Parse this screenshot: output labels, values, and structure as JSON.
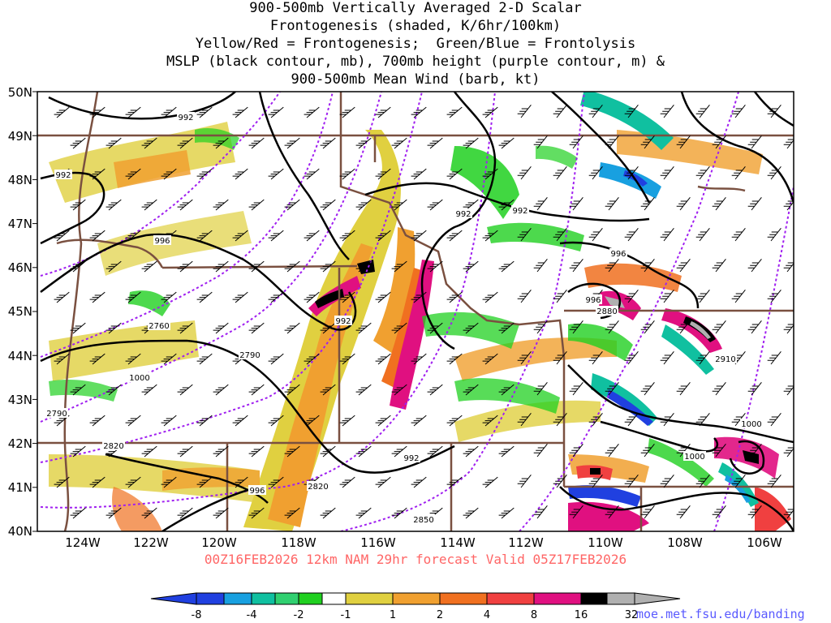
{
  "title_lines": [
    "900-500mb Vertically Averaged 2-D Scalar",
    "Frontogenesis (shaded, K/6hr/100km)",
    "Yellow/Red = Frontogenesis;  Green/Blue = Frontolysis",
    "MSLP (black contour, mb), 700mb height (purple contour, m) &",
    "900-500mb Mean Wind (barb, kt)"
  ],
  "valid_text": "00Z16FEB2026 12km NAM 29hr forecast Valid 05Z17FEB2026",
  "credit": "moe.met.fsu.edu/banding",
  "lat_labels": [
    "50N",
    "49N",
    "48N",
    "47N",
    "46N",
    "45N",
    "44N",
    "43N",
    "42N",
    "41N",
    "40N"
  ],
  "lon_labels": [
    "124W",
    "122W",
    "120W",
    "118W",
    "116W",
    "114W",
    "112W",
    "110W",
    "108W",
    "106W"
  ],
  "mslp_labels": [
    "992",
    "992",
    "996",
    "992",
    "992",
    "992",
    "996",
    "996",
    "1000",
    "996",
    "1000",
    "1000",
    "992"
  ],
  "height_labels": [
    "2760",
    "2790",
    "2790",
    "2820",
    "2820",
    "2850",
    "2880",
    "2910"
  ],
  "colorbar": {
    "labels": [
      "-8",
      "-4",
      "-2",
      "-1",
      "1",
      "2",
      "4",
      "8",
      "16",
      "32"
    ],
    "colors": [
      "#2040e0",
      "#18a0e0",
      "#10c0a0",
      "#30d070",
      "#20d020",
      "#ffffff",
      "#e0d040",
      "#f0a030",
      "#f07020",
      "#f04040",
      "#e01080",
      "#000000",
      "#b0b0b0"
    ]
  },
  "colors": {
    "mslp": "#000000",
    "height": "#a020f0",
    "borders": "#7a5040",
    "valid_text": "#ff6666",
    "credit": "#5a5aff"
  }
}
